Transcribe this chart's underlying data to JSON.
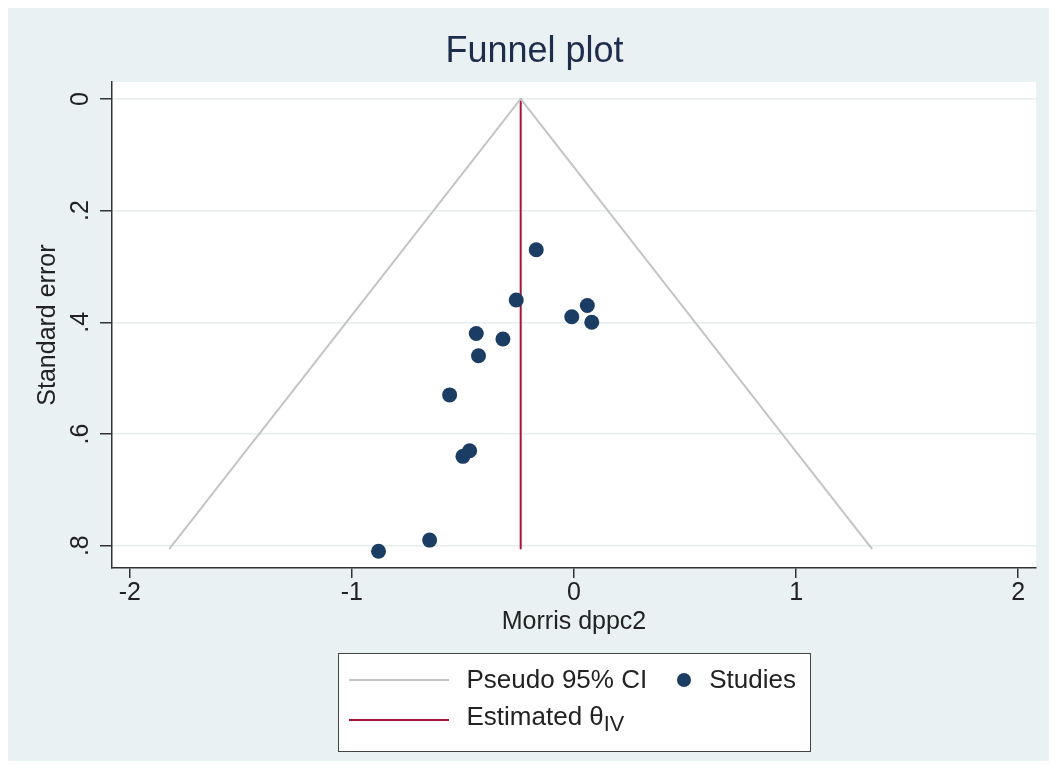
{
  "chart_data": {
    "type": "scatter",
    "title": "Funnel plot",
    "xlabel": "Morris dppc2",
    "ylabel": "Standard error",
    "xlim": [
      -2.08,
      2.08
    ],
    "xticks": [
      -2,
      -1,
      0,
      1,
      2
    ],
    "ylim": [
      0.84,
      -0.03
    ],
    "yticks": [
      0,
      {
        "value": 0.2,
        "label": ".2"
      },
      {
        "value": 0.4,
        "label": ".4"
      },
      {
        "value": 0.6,
        "label": ".6"
      },
      {
        "value": 0.8,
        "label": ".8"
      }
    ],
    "grid": "y",
    "legend": "bottom",
    "marker": "circle",
    "series": [
      {
        "name": "Pseudo 95% CI",
        "type": "line",
        "marker": "none",
        "color": "#c4c4c4",
        "x": [
          -1.82,
          -0.24,
          1.34
        ],
        "values": [
          0.805,
          0,
          0.805
        ]
      },
      {
        "name": "Studies",
        "type": "scatter",
        "color": "#1b3d63",
        "x": [
          -0.17,
          -0.26,
          0.06,
          -0.01,
          0.08,
          -0.44,
          -0.32,
          -0.43,
          -0.56,
          -0.47,
          -0.5,
          -0.65,
          -0.88
        ],
        "values": [
          0.27,
          0.36,
          0.37,
          0.39,
          0.4,
          0.42,
          0.43,
          0.46,
          0.53,
          0.63,
          0.64,
          0.79,
          0.81
        ]
      },
      {
        "name": "Estimated θ$_{IV}$",
        "type": "line",
        "marker": "none",
        "color": "#a8143c",
        "x": [
          -0.24,
          -0.24
        ],
        "values": [
          0,
          0.805
        ]
      }
    ]
  }
}
